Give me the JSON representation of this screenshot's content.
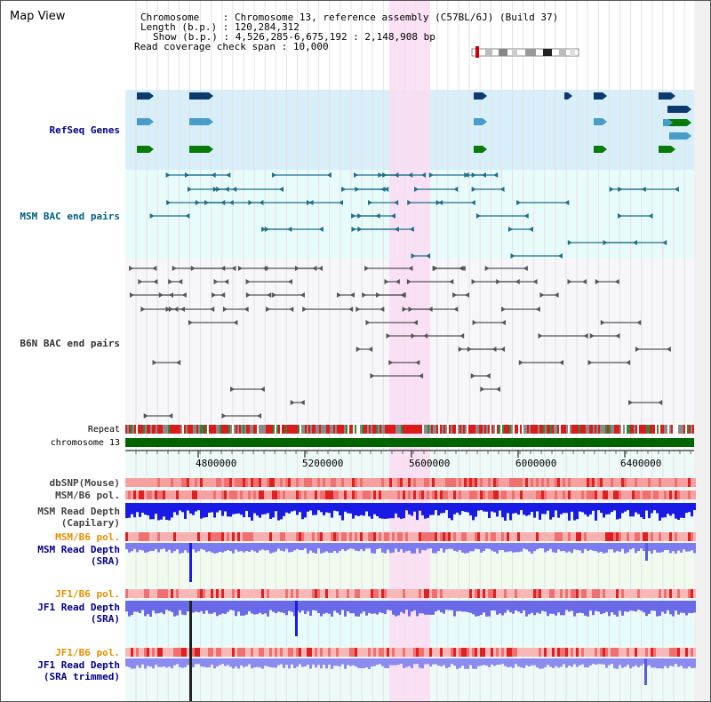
{
  "page": {
    "title": "Map View"
  },
  "header": {
    "chromosome_label": "Chromosome",
    "chromosome_value": "Chromosome 13, reference assembly (C57BL/6J) (Build 37)",
    "length_label": "Length (b.p.)",
    "length_value": "120,284,312",
    "show_label": "Show (b.p.)",
    "show_value": "4,526,285-6,675,192 : 2,148,908 bp",
    "coverage_label": "Read coverage check span",
    "coverage_value": "10,000"
  },
  "tracks": {
    "refseq": "RefSeq Genes",
    "msm_bac": "MSM BAC end pairs",
    "b6n_bac": "B6N BAC end pairs",
    "repeat": "Repeat",
    "chromosome": "chromosome 13",
    "dbsnp": "dbSNP(Mouse)",
    "msm_b6_pol_1": "MSM/B6 pol.",
    "msm_depth_cap_1": "MSM Read Depth",
    "msm_depth_cap_2": "(Capilary)",
    "msm_b6_pol_2": "MSM/B6 pol.",
    "msm_depth_sra_1": "MSM Read Depth",
    "msm_depth_sra_2": "(SRA)",
    "jf1_b6_pol_1": "JF1/B6 pol.",
    "jf1_depth_sra_1": "JF1 Read Depth",
    "jf1_depth_sra_2": "(SRA)",
    "jf1_b6_pol_2": "JF1/B6 pol.",
    "jf1_depth_trim_1": "JF1 Read Depth",
    "jf1_depth_trim_2": "(SRA trimmed)"
  },
  "scale": {
    "ticks": [
      "4800000",
      "5200000",
      "5600000",
      "6000000",
      "6400000"
    ]
  },
  "colors": {
    "refseq_bg": "#d8eef8",
    "bac_bg": "#e8fbfb",
    "gene_navy": "#0d3a6e",
    "gene_steel": "#4a9cc8",
    "gene_green": "#0a7a0a",
    "highlight": "#fadcf2",
    "chromosome_bar": "#006400",
    "depth_blue": "#1a1ae6"
  }
}
